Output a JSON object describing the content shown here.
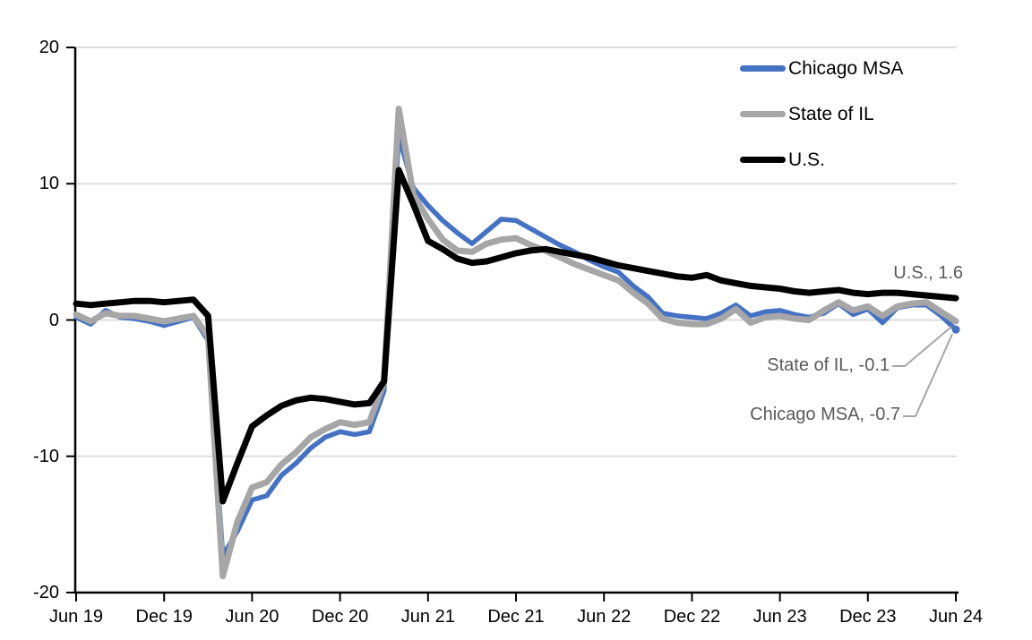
{
  "colors": {
    "chicago": "#4472C4",
    "il": "#A6A6A6",
    "us": "#000000",
    "grid": "#D9D9D9",
    "axis": "#000000",
    "annotation_text": "#595959",
    "leader": "#A6A6A6",
    "background": "#FFFFFF"
  },
  "legend": {
    "position": "top-right-inside"
  },
  "annotations": {
    "us": "U.S., 1.6",
    "il": "State of IL, -0.1",
    "chicago": "Chicago MSA, -0.7"
  },
  "chart_data": {
    "type": "line",
    "grid": true,
    "legend_position": "top-right",
    "ylim": [
      -20,
      20
    ],
    "ytick_values": [
      20,
      10,
      0,
      -10,
      -20
    ],
    "ytick_labels": [
      "20",
      "10",
      "0",
      "-10",
      "-20"
    ],
    "xtick_labels": [
      "Jun 19",
      "Dec 19",
      "Jun 20",
      "Dec 20",
      "Jun 21",
      "Dec 21",
      "Jun 22",
      "Dec 22",
      "Jun 23",
      "Dec 23",
      "Jun 24"
    ],
    "xtick_interval_months": 6,
    "x_labels": [
      "Jun 19",
      "Jul 19",
      "Aug 19",
      "Sep 19",
      "Oct 19",
      "Nov 19",
      "Dec 19",
      "Jan 20",
      "Feb 20",
      "Mar 20",
      "Apr 20",
      "May 20",
      "Jun 20",
      "Jul 20",
      "Aug 20",
      "Sep 20",
      "Oct 20",
      "Nov 20",
      "Dec 20",
      "Jan 21",
      "Feb 21",
      "Mar 21",
      "Apr 21",
      "May 21",
      "Jun 21",
      "Jul 21",
      "Aug 21",
      "Sep 21",
      "Oct 21",
      "Nov 21",
      "Dec 21",
      "Jan 22",
      "Feb 22",
      "Mar 22",
      "Apr 22",
      "May 22",
      "Jun 22",
      "Jul 22",
      "Aug 22",
      "Sep 22",
      "Oct 22",
      "Nov 22",
      "Dec 22",
      "Jan 23",
      "Feb 23",
      "Mar 23",
      "Apr 23",
      "May 23",
      "Jun 23",
      "Jul 23",
      "Aug 23",
      "Sep 23",
      "Oct 23",
      "Nov 23",
      "Dec 23",
      "Jan 24",
      "Feb 24",
      "Mar 24",
      "Apr 24",
      "May 24",
      "Jun 24"
    ],
    "series": [
      {
        "name": "Chicago MSA",
        "color": "#4472C4",
        "width": 5.5,
        "end_marker": true,
        "values": [
          0.2,
          -0.3,
          0.7,
          0.2,
          0.1,
          -0.1,
          -0.4,
          -0.1,
          0.2,
          -1.5,
          -17.3,
          -15.5,
          -13.2,
          -12.9,
          -11.4,
          -10.5,
          -9.4,
          -8.6,
          -8.2,
          -8.4,
          -8.2,
          -5.2,
          13.5,
          9.7,
          8.4,
          7.3,
          6.4,
          5.6,
          6.5,
          7.4,
          7.3,
          6.7,
          6.1,
          5.5,
          5.0,
          4.4,
          3.9,
          3.5,
          2.5,
          1.7,
          0.5,
          0.3,
          0.2,
          0.1,
          0.5,
          1.1,
          0.3,
          0.6,
          0.7,
          0.4,
          0.2,
          0.5,
          1.2,
          0.4,
          0.8,
          -0.2,
          0.9,
          1.1,
          1.1,
          0.3,
          -0.7
        ]
      },
      {
        "name": "State of IL",
        "color": "#A6A6A6",
        "width": 7,
        "end_marker": false,
        "values": [
          0.4,
          -0.1,
          0.5,
          0.3,
          0.3,
          0.1,
          -0.1,
          0.1,
          0.3,
          -1.2,
          -18.8,
          -14.8,
          -12.3,
          -11.9,
          -10.6,
          -9.7,
          -8.6,
          -8.0,
          -7.5,
          -7.7,
          -7.5,
          -4.6,
          15.5,
          9.2,
          7.4,
          5.9,
          5.1,
          5.0,
          5.6,
          5.9,
          6.0,
          5.5,
          5.1,
          4.6,
          4.1,
          3.7,
          3.3,
          2.9,
          2.0,
          1.2,
          0.1,
          -0.2,
          -0.3,
          -0.3,
          0.1,
          0.8,
          -0.2,
          0.2,
          0.3,
          0.1,
          0.0,
          0.7,
          1.3,
          0.7,
          1.0,
          0.3,
          1.0,
          1.2,
          1.3,
          0.6,
          -0.1
        ]
      },
      {
        "name": "U.S.",
        "color": "#000000",
        "width": 7,
        "end_marker": false,
        "values": [
          1.2,
          1.1,
          1.2,
          1.3,
          1.4,
          1.4,
          1.3,
          1.4,
          1.5,
          0.3,
          -13.3,
          -10.5,
          -7.8,
          -7.0,
          -6.3,
          -5.9,
          -5.7,
          -5.8,
          -6.0,
          -6.2,
          -6.1,
          -4.5,
          11.0,
          8.5,
          5.8,
          5.2,
          4.5,
          4.2,
          4.3,
          4.6,
          4.9,
          5.1,
          5.2,
          5.0,
          4.8,
          4.6,
          4.3,
          4.0,
          3.8,
          3.6,
          3.4,
          3.2,
          3.1,
          3.3,
          2.9,
          2.7,
          2.5,
          2.4,
          2.3,
          2.1,
          2.0,
          2.1,
          2.2,
          2.0,
          1.9,
          2.0,
          2.0,
          1.9,
          1.8,
          1.7,
          1.6
        ]
      }
    ],
    "end_values": {
      "us": 1.6,
      "il": -0.1,
      "chicago": -0.7
    }
  }
}
